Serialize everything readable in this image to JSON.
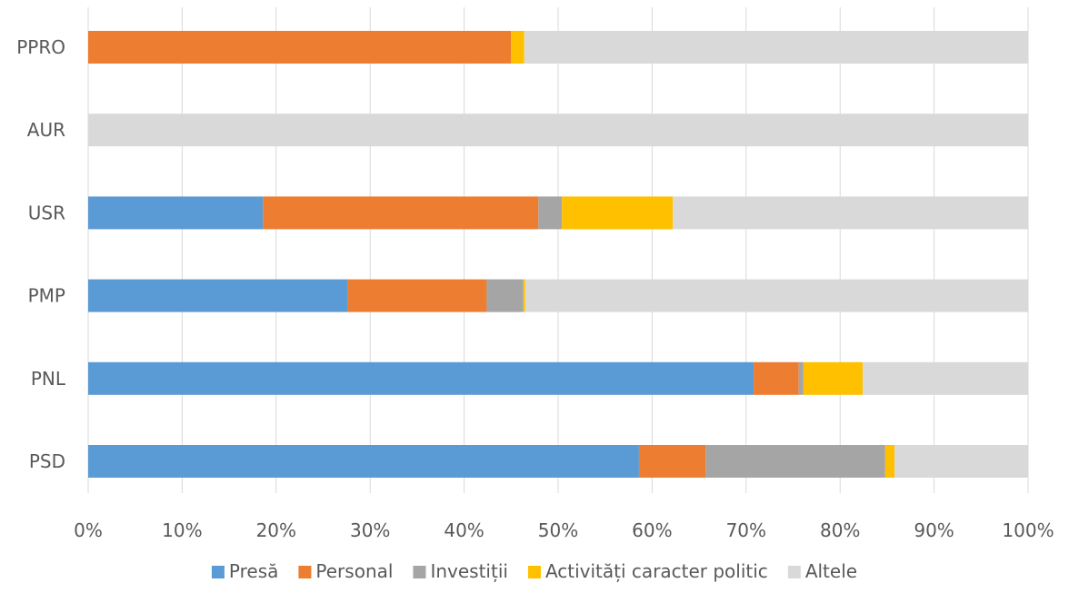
{
  "chart_data": {
    "type": "bar",
    "orientation": "horizontal",
    "stacked": true,
    "percent_stacked": true,
    "title": "",
    "xlabel": "",
    "ylabel": "",
    "xlim": [
      0,
      100
    ],
    "x_ticks": [
      "0%",
      "10%",
      "20%",
      "30%",
      "40%",
      "50%",
      "60%",
      "70%",
      "80%",
      "90%",
      "100%"
    ],
    "grid": "vertical",
    "legend_position": "bottom",
    "categories": [
      "PPRO",
      "AUR",
      "USR",
      "PMP",
      "PNL",
      "PSD"
    ],
    "series": [
      {
        "name": "Presă",
        "color": "#5B9BD5",
        "values": [
          0,
          0,
          18.6,
          27.6,
          70.8,
          58.6
        ]
      },
      {
        "name": "Personal",
        "color": "#ED7D31",
        "values": [
          45.0,
          0,
          29.3,
          14.8,
          4.8,
          7.1
        ]
      },
      {
        "name": "Investiții",
        "color": "#A5A5A5",
        "values": [
          0,
          0,
          2.5,
          3.9,
          0.5,
          19.1
        ]
      },
      {
        "name": "Activități caracter politic",
        "color": "#FFC000",
        "values": [
          1.4,
          0,
          11.8,
          0.2,
          6.3,
          1.0
        ]
      },
      {
        "name": "Altele",
        "color": "#D9D9D9",
        "values": [
          53.6,
          100,
          37.8,
          53.5,
          17.6,
          14.2
        ]
      }
    ]
  }
}
